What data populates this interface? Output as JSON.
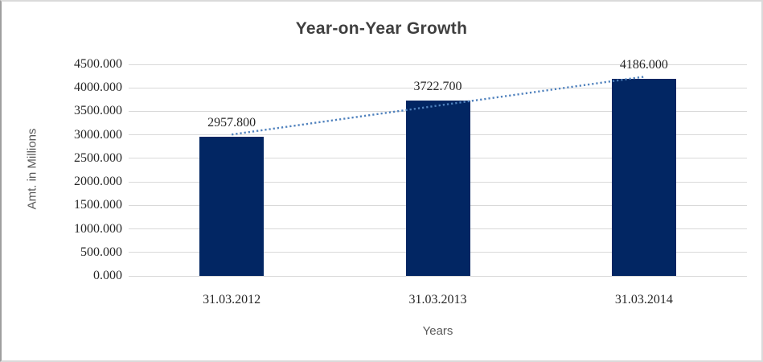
{
  "chart_data": {
    "type": "bar",
    "title": "Year-on-Year Growth",
    "xlabel": "Years",
    "ylabel": "Amt. in Millions",
    "categories": [
      "31.03.2012",
      "31.03.2013",
      "31.03.2014"
    ],
    "values": [
      2957.8,
      3722.7,
      4186.0
    ],
    "data_labels": [
      "2957.800",
      "3722.700",
      "4186.000"
    ],
    "ylim": [
      0,
      4500
    ],
    "ystep": 500,
    "ytick_labels": [
      "0.000",
      "500.000",
      "1000.000",
      "1500.000",
      "2000.000",
      "2500.000",
      "3000.000",
      "3500.000",
      "4000.000",
      "4500.000"
    ],
    "grid": true,
    "legend": "none",
    "trendline": {
      "type": "linear",
      "style": "dotted"
    },
    "colors": {
      "bar": "#022663",
      "trendline": "#4f81bd",
      "gridline": "#d9d9d9",
      "title_text": "#3f3f3f",
      "axis_title_text": "#595959",
      "tick_text": "#262626",
      "background": "#ffffff"
    }
  }
}
